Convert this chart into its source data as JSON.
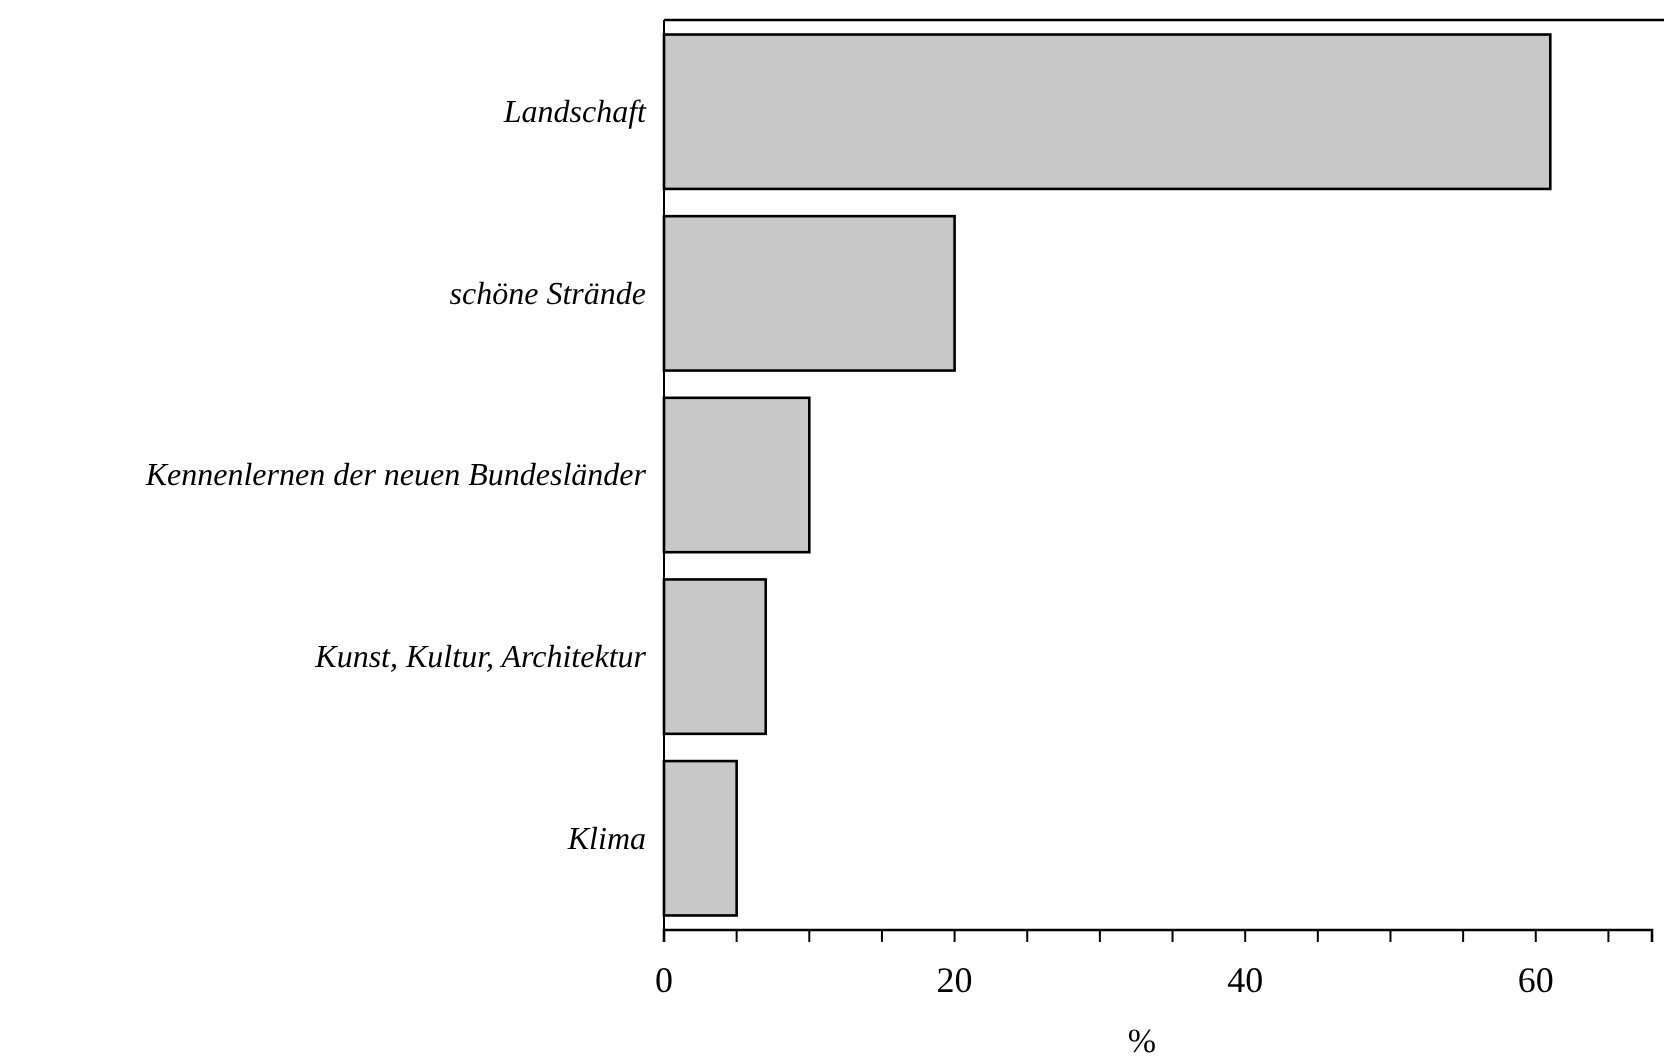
{
  "chart_data": {
    "type": "bar",
    "orientation": "horizontal",
    "xlabel": "%",
    "categories": [
      "Landschaft",
      "schöne Strände",
      "Kennenlernen der neuen Bundesländer",
      "Kunst, Kultur, Architektur",
      "Klima"
    ],
    "values": [
      61,
      20,
      10,
      7,
      5
    ],
    "color": "#c8c8c8",
    "xlim": [
      0,
      68
    ],
    "xticks": [
      0,
      {
        "value": 5,
        "label": null
      },
      {
        "value": 10,
        "label": null
      },
      {
        "value": 15,
        "label": null
      },
      20,
      {
        "value": 25,
        "label": null
      },
      {
        "value": 30,
        "label": null
      },
      {
        "value": 35,
        "label": null
      },
      40,
      {
        "value": 45,
        "label": null
      },
      {
        "value": 50,
        "label": null
      },
      {
        "value": 55,
        "label": null
      },
      60,
      {
        "value": 65,
        "label": null
      }
    ],
    "grid": false
  }
}
